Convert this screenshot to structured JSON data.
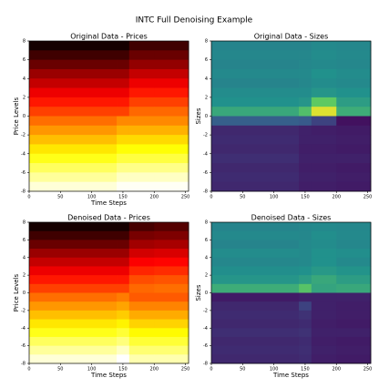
{
  "title": "INTC Full Denoising Example",
  "chart_data": [
    {
      "type": "heatmap",
      "title": "Original Data - Prices",
      "xlabel": "Time Steps",
      "ylabel": "Price Levels",
      "colormap": "hot",
      "xlim": [
        0,
        255
      ],
      "ylim": [
        -8,
        8
      ],
      "xticks": [
        0,
        50,
        100,
        150,
        200,
        250
      ],
      "yticks": [
        -8,
        -6,
        -4,
        -2,
        0,
        2,
        4,
        6,
        8
      ],
      "x_edges": [
        0,
        140,
        160,
        200,
        255
      ],
      "y_edges": [
        8,
        7,
        6,
        5,
        4,
        3,
        2,
        1,
        0,
        -1,
        -2,
        -3,
        -4,
        -5,
        -6,
        -7,
        -8
      ],
      "z": [
        [
          0.03,
          0.03,
          0.09,
          0.09
        ],
        [
          0.09,
          0.09,
          0.15,
          0.15
        ],
        [
          0.15,
          0.15,
          0.21,
          0.21
        ],
        [
          0.22,
          0.22,
          0.28,
          0.28
        ],
        [
          0.28,
          0.28,
          0.34,
          0.34
        ],
        [
          0.34,
          0.34,
          0.4,
          0.4
        ],
        [
          0.4,
          0.4,
          0.46,
          0.46
        ],
        [
          0.46,
          0.46,
          0.52,
          0.52
        ],
        [
          0.53,
          0.57,
          0.57,
          0.57
        ],
        [
          0.59,
          0.63,
          0.63,
          0.63
        ],
        [
          0.65,
          0.69,
          0.69,
          0.69
        ],
        [
          0.71,
          0.75,
          0.75,
          0.75
        ],
        [
          0.77,
          0.81,
          0.81,
          0.81
        ],
        [
          0.84,
          0.88,
          0.88,
          0.88
        ],
        [
          0.9,
          0.94,
          0.94,
          0.94
        ],
        [
          0.96,
          0.99,
          0.99,
          0.99
        ]
      ]
    },
    {
      "type": "heatmap",
      "title": "Original Data - Sizes",
      "ylabel": "Sizes",
      "colormap": "viridis",
      "xlim": [
        0,
        255
      ],
      "ylim": [
        -8,
        8
      ],
      "xticks": [
        0,
        50,
        100,
        150,
        200,
        250
      ],
      "yticks": [
        -8,
        -6,
        -4,
        -2,
        0,
        2,
        4,
        6,
        8
      ],
      "x_edges": [
        0,
        140,
        160,
        200,
        255
      ],
      "y_edges": [
        8,
        7,
        6,
        5,
        4,
        3,
        2,
        1,
        0,
        -1,
        -2,
        -3,
        -4,
        -5,
        -6,
        -7,
        -8
      ],
      "z": [
        [
          0.45,
          0.45,
          0.47,
          0.46
        ],
        [
          0.46,
          0.46,
          0.48,
          0.47
        ],
        [
          0.45,
          0.46,
          0.47,
          0.46
        ],
        [
          0.47,
          0.47,
          0.5,
          0.48
        ],
        [
          0.45,
          0.46,
          0.48,
          0.47
        ],
        [
          0.48,
          0.48,
          0.52,
          0.5
        ],
        [
          0.5,
          0.52,
          0.75,
          0.55
        ],
        [
          0.6,
          0.7,
          0.95,
          0.62
        ],
        [
          0.3,
          0.28,
          0.2,
          0.05
        ],
        [
          0.12,
          0.1,
          0.09,
          0.08
        ],
        [
          0.13,
          0.1,
          0.1,
          0.09
        ],
        [
          0.12,
          0.09,
          0.09,
          0.08
        ],
        [
          0.14,
          0.1,
          0.1,
          0.1
        ],
        [
          0.12,
          0.09,
          0.09,
          0.08
        ],
        [
          0.13,
          0.1,
          0.1,
          0.09
        ],
        [
          0.12,
          0.09,
          0.09,
          0.08
        ]
      ]
    },
    {
      "type": "heatmap",
      "title": "Denoised Data - Prices",
      "xlabel": "Time Steps",
      "ylabel": "Price Levels",
      "colormap": "hot",
      "xlim": [
        0,
        255
      ],
      "ylim": [
        -8,
        8
      ],
      "xticks": [
        0,
        50,
        100,
        150,
        200,
        250
      ],
      "yticks": [
        -8,
        -6,
        -4,
        -2,
        0,
        2,
        4,
        6,
        8
      ],
      "x_edges": [
        0,
        140,
        160,
        200,
        255
      ],
      "y_edges": [
        8,
        7,
        6,
        5,
        4,
        3,
        2,
        1,
        0,
        -1,
        -2,
        -3,
        -4,
        -5,
        -6,
        -7,
        -8
      ],
      "z": [
        [
          0.03,
          0.03,
          0.1,
          0.12
        ],
        [
          0.09,
          0.09,
          0.17,
          0.18
        ],
        [
          0.15,
          0.15,
          0.23,
          0.24
        ],
        [
          0.22,
          0.22,
          0.3,
          0.31
        ],
        [
          0.28,
          0.28,
          0.36,
          0.37
        ],
        [
          0.34,
          0.34,
          0.42,
          0.43
        ],
        [
          0.4,
          0.4,
          0.48,
          0.49
        ],
        [
          0.46,
          0.46,
          0.52,
          0.53
        ],
        [
          0.53,
          0.55,
          0.5,
          0.5
        ],
        [
          0.59,
          0.61,
          0.56,
          0.56
        ],
        [
          0.65,
          0.67,
          0.62,
          0.62
        ],
        [
          0.71,
          0.73,
          0.68,
          0.68
        ],
        [
          0.77,
          0.8,
          0.74,
          0.74
        ],
        [
          0.84,
          0.87,
          0.8,
          0.8
        ],
        [
          0.9,
          0.94,
          0.86,
          0.86
        ],
        [
          0.96,
          1.0,
          0.92,
          0.92
        ]
      ]
    },
    {
      "type": "heatmap",
      "title": "Denoised Data - Sizes",
      "xlabel": "Time Steps",
      "ylabel": "Sizes",
      "colormap": "viridis",
      "xlim": [
        0,
        255
      ],
      "ylim": [
        -8,
        8
      ],
      "xticks": [
        0,
        50,
        100,
        150,
        200,
        250
      ],
      "yticks": [
        -8,
        -6,
        -4,
        -2,
        0,
        2,
        4,
        6,
        8
      ],
      "x_edges": [
        0,
        140,
        160,
        200,
        255
      ],
      "y_edges": [
        8,
        7,
        6,
        5,
        4,
        3,
        2,
        1,
        0,
        -1,
        -2,
        -3,
        -4,
        -5,
        -6,
        -7,
        -8
      ],
      "z": [
        [
          0.45,
          0.46,
          0.47,
          0.46
        ],
        [
          0.47,
          0.46,
          0.49,
          0.47
        ],
        [
          0.45,
          0.47,
          0.48,
          0.46
        ],
        [
          0.48,
          0.47,
          0.5,
          0.49
        ],
        [
          0.46,
          0.47,
          0.5,
          0.47
        ],
        [
          0.49,
          0.5,
          0.53,
          0.51
        ],
        [
          0.52,
          0.55,
          0.6,
          0.55
        ],
        [
          0.62,
          0.72,
          0.58,
          0.6
        ],
        [
          0.08,
          0.1,
          0.1,
          0.1
        ],
        [
          0.12,
          0.2,
          0.1,
          0.09
        ],
        [
          0.13,
          0.15,
          0.1,
          0.09
        ],
        [
          0.12,
          0.13,
          0.09,
          0.08
        ],
        [
          0.14,
          0.15,
          0.1,
          0.1
        ],
        [
          0.12,
          0.13,
          0.09,
          0.08
        ],
        [
          0.13,
          0.14,
          0.1,
          0.09
        ],
        [
          0.12,
          0.13,
          0.09,
          0.08
        ]
      ]
    }
  ]
}
